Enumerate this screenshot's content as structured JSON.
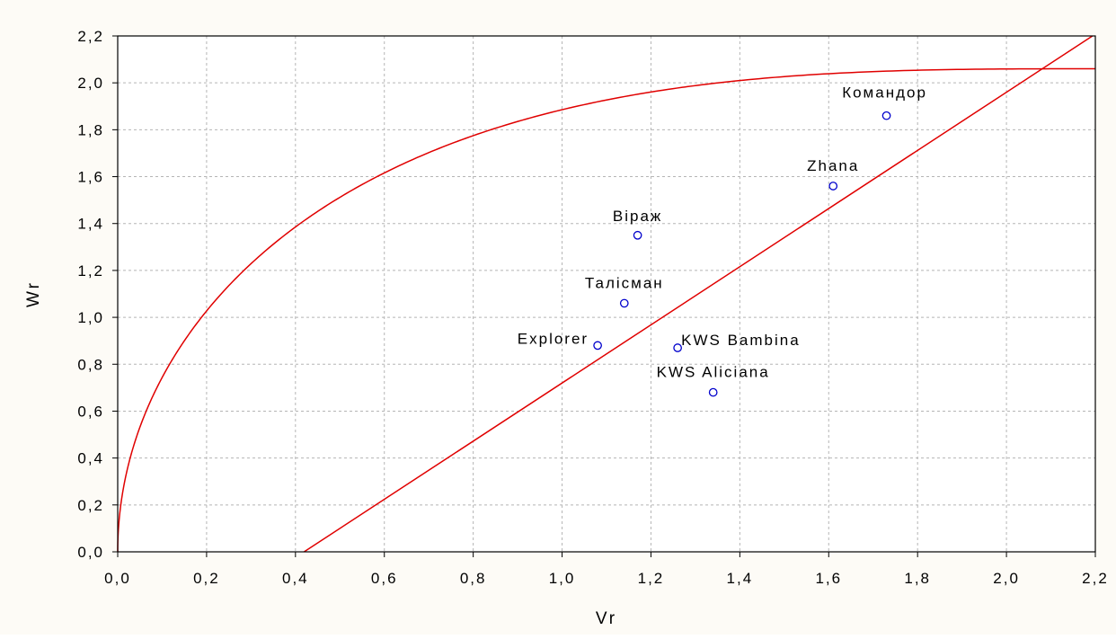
{
  "chart_data": {
    "type": "scatter",
    "title": "",
    "xlabel": "Vr",
    "ylabel": "Wr",
    "xlim": [
      0,
      2.2
    ],
    "ylim": [
      0,
      2.2
    ],
    "grid": true,
    "xticks": [
      "0,0",
      "0,2",
      "0,4",
      "0,6",
      "0,8",
      "1,0",
      "1,2",
      "1,4",
      "1,6",
      "1,8",
      "2,0",
      "2,2"
    ],
    "yticks": [
      "0,0",
      "0,2",
      "0,4",
      "0,6",
      "0,8",
      "1,0",
      "1,2",
      "1,4",
      "1,6",
      "1,8",
      "2,0",
      "2,2"
    ],
    "points": [
      {
        "label": "Командор",
        "x": 1.73,
        "y": 1.86
      },
      {
        "label": "Zhana",
        "x": 1.61,
        "y": 1.56
      },
      {
        "label": "Віраж",
        "x": 1.17,
        "y": 1.35
      },
      {
        "label": "Талісман",
        "x": 1.14,
        "y": 1.06
      },
      {
        "label": "Explorer",
        "x": 1.08,
        "y": 0.88
      },
      {
        "label": "KWS Bambina",
        "x": 1.26,
        "y": 0.87
      },
      {
        "label": "KWS Aliciana",
        "x": 1.34,
        "y": 0.68
      }
    ],
    "regression_line": {
      "slope": 1.24,
      "intercept": -0.52
    },
    "limiting_parabola": {
      "coef": 2.06,
      "x_max": 2.2
    },
    "colors": {
      "curves": "#e00000",
      "points": "#0000cc",
      "grid": "#b5b5b5",
      "background": "#fdfbf6"
    }
  }
}
